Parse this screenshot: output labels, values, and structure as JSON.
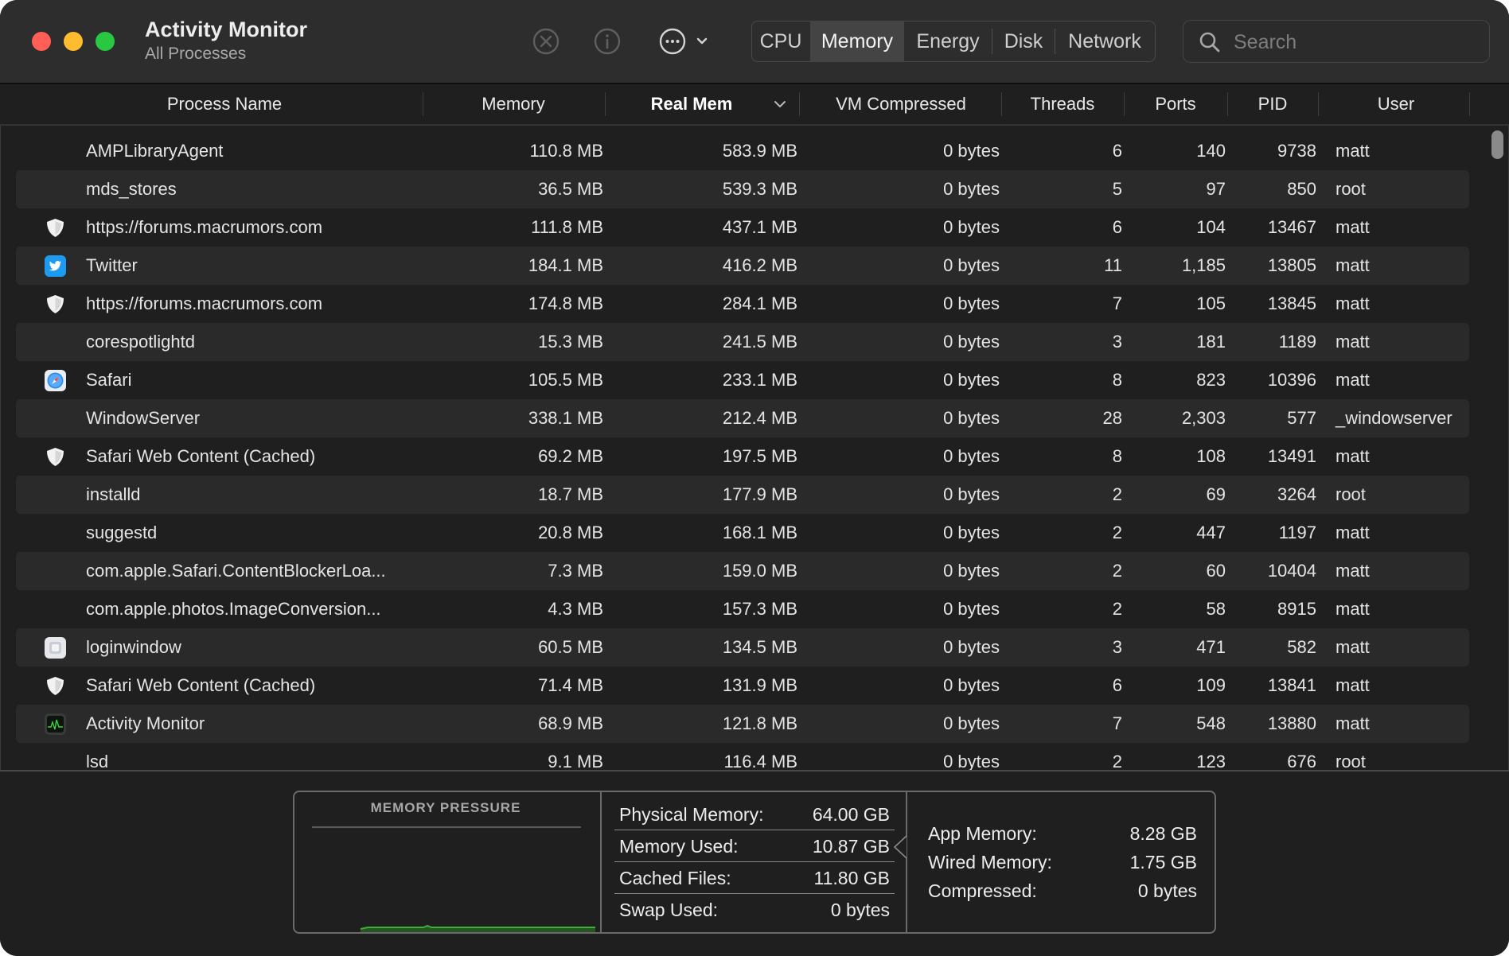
{
  "app": {
    "title": "Activity Monitor",
    "subtitle": "All Processes"
  },
  "toolbar": {
    "stop_icon": "x-circle-icon",
    "info_icon": "info-circle-icon",
    "more_icon": "ellipsis-circle-icon",
    "tabs": [
      "CPU",
      "Memory",
      "Energy",
      "Disk",
      "Network"
    ],
    "active_tab": "Memory",
    "search_placeholder": "Search"
  },
  "columns": {
    "name": "Process Name",
    "memory": "Memory",
    "real_mem": "Real Mem",
    "vm_compressed": "VM Compressed",
    "threads": "Threads",
    "ports": "Ports",
    "pid": "PID",
    "user": "User"
  },
  "sorted_column": "Real Mem",
  "processes": [
    {
      "name": "AMPLibraryAgent",
      "icon": "",
      "memory": "110.8 MB",
      "real_mem": "583.9 MB",
      "vm_compressed": "0 bytes",
      "threads": "6",
      "ports": "140",
      "pid": "9738",
      "user": "matt"
    },
    {
      "name": "mds_stores",
      "icon": "",
      "memory": "36.5 MB",
      "real_mem": "539.3 MB",
      "vm_compressed": "0 bytes",
      "threads": "5",
      "ports": "97",
      "pid": "850",
      "user": "root"
    },
    {
      "name": "https://forums.macrumors.com",
      "icon": "shield-icon",
      "memory": "111.8 MB",
      "real_mem": "437.1 MB",
      "vm_compressed": "0 bytes",
      "threads": "6",
      "ports": "104",
      "pid": "13467",
      "user": "matt"
    },
    {
      "name": "Twitter",
      "icon": "twitter-icon",
      "memory": "184.1 MB",
      "real_mem": "416.2 MB",
      "vm_compressed": "0 bytes",
      "threads": "11",
      "ports": "1,185",
      "pid": "13805",
      "user": "matt"
    },
    {
      "name": "https://forums.macrumors.com",
      "icon": "shield-icon",
      "memory": "174.8 MB",
      "real_mem": "284.1 MB",
      "vm_compressed": "0 bytes",
      "threads": "7",
      "ports": "105",
      "pid": "13845",
      "user": "matt"
    },
    {
      "name": "corespotlightd",
      "icon": "",
      "memory": "15.3 MB",
      "real_mem": "241.5 MB",
      "vm_compressed": "0 bytes",
      "threads": "3",
      "ports": "181",
      "pid": "1189",
      "user": "matt"
    },
    {
      "name": "Safari",
      "icon": "safari-icon",
      "memory": "105.5 MB",
      "real_mem": "233.1 MB",
      "vm_compressed": "0 bytes",
      "threads": "8",
      "ports": "823",
      "pid": "10396",
      "user": "matt"
    },
    {
      "name": "WindowServer",
      "icon": "",
      "memory": "338.1 MB",
      "real_mem": "212.4 MB",
      "vm_compressed": "0 bytes",
      "threads": "28",
      "ports": "2,303",
      "pid": "577",
      "user": "_windowserver"
    },
    {
      "name": "Safari Web Content (Cached)",
      "icon": "shield-icon",
      "memory": "69.2 MB",
      "real_mem": "197.5 MB",
      "vm_compressed": "0 bytes",
      "threads": "8",
      "ports": "108",
      "pid": "13491",
      "user": "matt"
    },
    {
      "name": "installd",
      "icon": "",
      "memory": "18.7 MB",
      "real_mem": "177.9 MB",
      "vm_compressed": "0 bytes",
      "threads": "2",
      "ports": "69",
      "pid": "3264",
      "user": "root"
    },
    {
      "name": "suggestd",
      "icon": "",
      "memory": "20.8 MB",
      "real_mem": "168.1 MB",
      "vm_compressed": "0 bytes",
      "threads": "2",
      "ports": "447",
      "pid": "1197",
      "user": "matt"
    },
    {
      "name": "com.apple.Safari.ContentBlockerLoa...",
      "icon": "",
      "memory": "7.3 MB",
      "real_mem": "159.0 MB",
      "vm_compressed": "0 bytes",
      "threads": "2",
      "ports": "60",
      "pid": "10404",
      "user": "matt"
    },
    {
      "name": "com.apple.photos.ImageConversion...",
      "icon": "",
      "memory": "4.3 MB",
      "real_mem": "157.3 MB",
      "vm_compressed": "0 bytes",
      "threads": "2",
      "ports": "58",
      "pid": "8915",
      "user": "matt"
    },
    {
      "name": "loginwindow",
      "icon": "loginwindow-icon",
      "memory": "60.5 MB",
      "real_mem": "134.5 MB",
      "vm_compressed": "0 bytes",
      "threads": "3",
      "ports": "471",
      "pid": "582",
      "user": "matt"
    },
    {
      "name": "Safari Web Content (Cached)",
      "icon": "shield-icon",
      "memory": "71.4 MB",
      "real_mem": "131.9 MB",
      "vm_compressed": "0 bytes",
      "threads": "6",
      "ports": "109",
      "pid": "13841",
      "user": "matt"
    },
    {
      "name": "Activity Monitor",
      "icon": "activity-monitor-icon",
      "memory": "68.9 MB",
      "real_mem": "121.8 MB",
      "vm_compressed": "0 bytes",
      "threads": "7",
      "ports": "548",
      "pid": "13880",
      "user": "matt"
    },
    {
      "name": "lsd",
      "icon": "",
      "memory": "9.1 MB",
      "real_mem": "116.4 MB",
      "vm_compressed": "0 bytes",
      "threads": "2",
      "ports": "123",
      "pid": "676",
      "user": "root"
    }
  ],
  "memory_pressure": {
    "title": "MEMORY PRESSURE",
    "graph_color": "#3cae3a"
  },
  "memory_stats": [
    {
      "label": "Physical Memory:",
      "value": "64.00 GB"
    },
    {
      "label": "Memory Used:",
      "value": "10.87 GB"
    },
    {
      "label": "Cached Files:",
      "value": "11.80 GB"
    },
    {
      "label": "Swap Used:",
      "value": "0 bytes"
    }
  ],
  "memory_breakdown": [
    {
      "label": "App Memory:",
      "value": "8.28 GB"
    },
    {
      "label": "Wired Memory:",
      "value": "1.75 GB"
    },
    {
      "label": "Compressed:",
      "value": "0 bytes"
    }
  ],
  "colors": {
    "window_bg": "#1f1f1f",
    "toolbar_bg": "#2d2d2d",
    "close": "#ff5f57",
    "minimize": "#febc2e",
    "zoom": "#28c840",
    "twitter": "#1d9bf0",
    "pressure_green": "#3cae3a"
  }
}
